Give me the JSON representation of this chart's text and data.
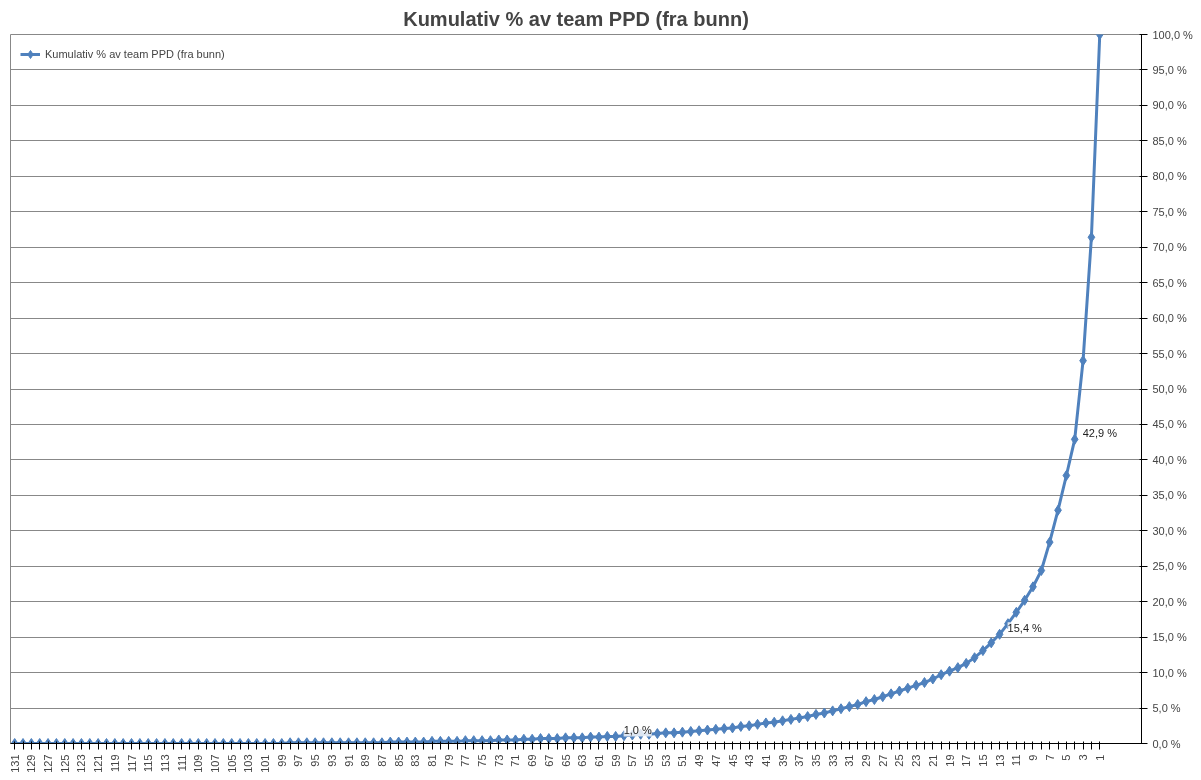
{
  "chart_data": {
    "type": "line",
    "title": "Kumulativ % av team PPD (fra bunn)",
    "categories": [
      "131",
      null,
      "129",
      null,
      "127",
      null,
      "125",
      null,
      "123",
      null,
      "121",
      null,
      "119",
      null,
      "117",
      null,
      "115",
      null,
      "113",
      null,
      "111",
      null,
      "109",
      null,
      "107",
      null,
      "105",
      null,
      "103",
      null,
      "101",
      null,
      "99",
      null,
      "97",
      null,
      "95",
      null,
      "93",
      null,
      "91",
      null,
      "89",
      null,
      "87",
      null,
      "85",
      null,
      "83",
      null,
      "81",
      null,
      "79",
      null,
      "77",
      null,
      "75",
      null,
      "73",
      null,
      "71",
      null,
      "69",
      null,
      "67",
      null,
      "65",
      null,
      "63",
      null,
      "61",
      null,
      "59",
      null,
      "57",
      null,
      "55",
      null,
      "53",
      null,
      "51",
      null,
      "49",
      null,
      "47",
      null,
      "45",
      null,
      "43",
      null,
      "41",
      null,
      "39",
      null,
      "37",
      null,
      "35",
      null,
      "33",
      null,
      "31",
      null,
      "29",
      null,
      "27",
      null,
      "25",
      null,
      "23",
      null,
      "21",
      null,
      "19",
      null,
      "17",
      null,
      "15",
      null,
      "13",
      null,
      "11",
      null,
      "9",
      null,
      "7",
      null,
      "5",
      null,
      "3",
      null,
      "1"
    ],
    "series": [
      {
        "name": "Kumulativ % av team PPD (fra bunn)",
        "color": "#4f81bd",
        "values": [
          0,
          0,
          0,
          0,
          0,
          0,
          0,
          0,
          0,
          0,
          0,
          0,
          0,
          0,
          0,
          0,
          0,
          0,
          0,
          0,
          0,
          0,
          0,
          0,
          0,
          0,
          0,
          0,
          0,
          0,
          0,
          0,
          0,
          0.1,
          0.1,
          0.1,
          0.1,
          0.1,
          0.1,
          0.1,
          0.1,
          0.1,
          0.1,
          0.1,
          0.1,
          0.2,
          0.2,
          0.2,
          0.2,
          0.2,
          0.3,
          0.3,
          0.3,
          0.3,
          0.4,
          0.4,
          0.4,
          0.4,
          0.5,
          0.5,
          0.5,
          0.6,
          0.6,
          0.7,
          0.7,
          0.7,
          0.8,
          0.8,
          0.8,
          0.9,
          0.9,
          1.0,
          1.0,
          1.1,
          1.2,
          1.3,
          1.3,
          1.4,
          1.5,
          1.5,
          1.6,
          1.7,
          1.8,
          1.9,
          2.0,
          2.1,
          2.2,
          2.4,
          2.5,
          2.7,
          2.9,
          3.0,
          3.2,
          3.4,
          3.6,
          3.8,
          4.1,
          4.3,
          4.6,
          4.9,
          5.2,
          5.5,
          5.9,
          6.2,
          6.6,
          7.0,
          7.4,
          7.8,
          8.2,
          8.6,
          9.1,
          9.7,
          10.2,
          10.7,
          11.3,
          12.1,
          13.1,
          14.2,
          15.4,
          16.9,
          18.5,
          20.2,
          22.1,
          24.4,
          28.4,
          32.9,
          37.8,
          42.9,
          54.0,
          71.4,
          100
        ],
        "value_labels": [
          null,
          null,
          null,
          null,
          null,
          null,
          null,
          null,
          null,
          null,
          null,
          null,
          null,
          null,
          null,
          null,
          null,
          null,
          null,
          null,
          null,
          null,
          null,
          null,
          null,
          null,
          null,
          null,
          null,
          null,
          null,
          null,
          null,
          null,
          null,
          null,
          null,
          null,
          null,
          null,
          null,
          null,
          null,
          null,
          null,
          null,
          null,
          null,
          null,
          null,
          null,
          null,
          null,
          null,
          null,
          null,
          null,
          null,
          null,
          null,
          null,
          null,
          null,
          null,
          null,
          null,
          null,
          null,
          null,
          null,
          null,
          null,
          "1,0 %",
          null,
          null,
          null,
          null,
          null,
          null,
          null,
          null,
          null,
          null,
          null,
          null,
          null,
          null,
          null,
          null,
          null,
          null,
          null,
          null,
          null,
          null,
          null,
          null,
          null,
          null,
          null,
          null,
          null,
          null,
          null,
          null,
          null,
          null,
          null,
          null,
          null,
          null,
          null,
          null,
          null,
          null,
          null,
          null,
          null,
          "15,4 %",
          null,
          null,
          null,
          null,
          null,
          null,
          null,
          null,
          "42,9 %",
          null,
          null,
          null
        ]
      }
    ],
    "ylim": [
      0,
      100
    ],
    "yticks": [
      {
        "value": 0,
        "label": "0,0 %"
      },
      {
        "value": 5,
        "label": "5,0 %"
      },
      {
        "value": 10,
        "label": "10,0 %"
      },
      {
        "value": 15,
        "label": "15,0 %"
      },
      {
        "value": 20,
        "label": "20,0 %"
      },
      {
        "value": 25,
        "label": "25,0 %"
      },
      {
        "value": 30,
        "label": "30,0 %"
      },
      {
        "value": 35,
        "label": "35,0 %"
      },
      {
        "value": 40,
        "label": "40,0 %"
      },
      {
        "value": 45,
        "label": "45,0 %"
      },
      {
        "value": 50,
        "label": "50,0 %"
      },
      {
        "value": 55,
        "label": "55,0 %"
      },
      {
        "value": 60,
        "label": "60,0 %"
      },
      {
        "value": 65,
        "label": "65,0 %"
      },
      {
        "value": 70,
        "label": "70,0 %"
      },
      {
        "value": 75,
        "label": "75,0 %"
      },
      {
        "value": 80,
        "label": "80,0 %"
      },
      {
        "value": 85,
        "label": "85,0 %"
      },
      {
        "value": 90,
        "label": "90,0 %"
      },
      {
        "value": 95,
        "label": "95,0 %"
      },
      {
        "value": 100,
        "label": "100,0 %"
      }
    ],
    "grid": "y",
    "legend": "top left",
    "marker": "diamond",
    "line_style": "solid"
  }
}
